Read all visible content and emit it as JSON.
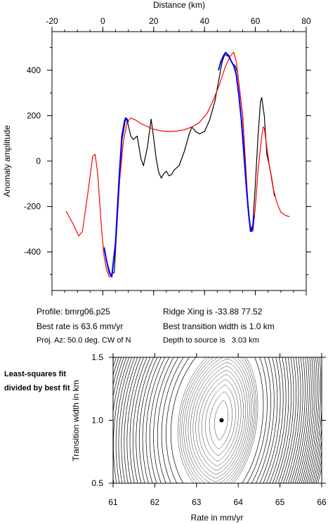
{
  "chart_data": [
    {
      "type": "line",
      "xlabel": "Distance (km)",
      "ylabel": "Anomaly amplitude",
      "xlim": [
        -20,
        80
      ],
      "ylim": [
        -570,
        570
      ],
      "x_ticks": [
        -20,
        0,
        20,
        40,
        60,
        80
      ],
      "y_ticks": [
        -400,
        -200,
        0,
        200,
        400
      ],
      "grid": false,
      "series": [
        {
          "color": "#000000",
          "points": [
            [
              0.5,
              -380
            ],
            [
              1.5,
              -440
            ],
            [
              3,
              -500
            ],
            [
              4.5,
              -490
            ],
            [
              6,
              -200
            ],
            [
              7.5,
              90
            ],
            [
              9,
              190
            ],
            [
              10,
              160
            ],
            [
              11,
              110
            ],
            [
              12,
              95
            ],
            [
              13.5,
              110
            ],
            [
              15,
              10
            ],
            [
              16,
              -20
            ],
            [
              17.5,
              60
            ],
            [
              19,
              185
            ],
            [
              20,
              100
            ],
            [
              21,
              10
            ],
            [
              22,
              -50
            ],
            [
              23,
              -75
            ],
            [
              24,
              -55
            ],
            [
              25,
              -45
            ],
            [
              26,
              -65
            ],
            [
              27,
              -60
            ],
            [
              28,
              -40
            ],
            [
              30,
              -20
            ],
            [
              32,
              40
            ],
            [
              34,
              120
            ],
            [
              35,
              150
            ],
            [
              36.5,
              130
            ],
            [
              38,
              120
            ],
            [
              40,
              130
            ],
            [
              42,
              180
            ],
            [
              44,
              260
            ],
            [
              46,
              380
            ],
            [
              47,
              440
            ],
            [
              48,
              470
            ],
            [
              49.5,
              460
            ],
            [
              51,
              430
            ],
            [
              52,
              420
            ],
            [
              53,
              390
            ],
            [
              55,
              200
            ],
            [
              56,
              0
            ],
            [
              57,
              -200
            ],
            [
              58,
              -310
            ],
            [
              59,
              -280
            ],
            [
              60,
              -100
            ],
            [
              61,
              100
            ],
            [
              62,
              260
            ],
            [
              62.5,
              280
            ],
            [
              63.5,
              200
            ],
            [
              64.5,
              30
            ],
            [
              65.5,
              -20
            ],
            [
              66.5,
              -80
            ],
            [
              67.5,
              -155
            ]
          ]
        },
        {
          "color": "#ff0000",
          "points": [
            [
              -14.5,
              -220
            ],
            [
              -12,
              -270
            ],
            [
              -9.5,
              -330
            ],
            [
              -8,
              -310
            ],
            [
              -6,
              -150
            ],
            [
              -4,
              20
            ],
            [
              -3,
              30
            ],
            [
              -2,
              -60
            ],
            [
              -0.5,
              -300
            ],
            [
              0.5,
              -420
            ],
            [
              1.5,
              -480
            ],
            [
              2.5,
              -510
            ],
            [
              3.5,
              -500
            ],
            [
              5,
              -380
            ],
            [
              6.5,
              -100
            ],
            [
              8,
              80
            ],
            [
              9.5,
              170
            ],
            [
              11,
              190
            ],
            [
              13,
              180
            ],
            [
              15,
              165
            ],
            [
              17,
              155
            ],
            [
              20,
              140
            ],
            [
              23,
              133
            ],
            [
              26,
              130
            ],
            [
              29,
              132
            ],
            [
              32,
              138
            ],
            [
              35,
              150
            ],
            [
              38,
              170
            ],
            [
              41,
              210
            ],
            [
              43.5,
              270
            ],
            [
              46,
              340
            ],
            [
              48,
              410
            ],
            [
              50,
              460
            ],
            [
              51.5,
              480
            ],
            [
              52.5,
              440
            ],
            [
              53.5,
              340
            ],
            [
              55,
              200
            ],
            [
              56,
              20
            ],
            [
              57,
              -170
            ],
            [
              58,
              -300
            ],
            [
              59,
              -310
            ],
            [
              60,
              -200
            ],
            [
              61,
              -50
            ],
            [
              62,
              60
            ],
            [
              63,
              150
            ],
            [
              63.5,
              145
            ],
            [
              64.5,
              60
            ],
            [
              65.5,
              -20
            ],
            [
              67,
              -120
            ],
            [
              68.5,
              -185
            ],
            [
              70,
              -225
            ],
            [
              72,
              -240
            ],
            [
              73.5,
              -245
            ]
          ]
        },
        {
          "color": "#0000ff",
          "points": [
            [
              0.5,
              -380
            ],
            [
              1.5,
              -440
            ],
            [
              2.5,
              -490
            ],
            [
              3.5,
              -510
            ],
            [
              5,
              -360
            ],
            [
              6.5,
              -60
            ],
            [
              7.5,
              110
            ],
            [
              8.5,
              175
            ],
            [
              9,
              190
            ],
            [
              9.5,
              185
            ],
            [
              10,
              170
            ]
          ]
        },
        {
          "color": "#0000ff",
          "points": [
            [
              45.5,
              400
            ],
            [
              46.5,
              440
            ],
            [
              47.5,
              465
            ],
            [
              48.3,
              478
            ],
            [
              49.5,
              465
            ],
            [
              50.5,
              440
            ],
            [
              51.5,
              420
            ],
            [
              52.5,
              380
            ],
            [
              53.5,
              290
            ],
            [
              54.5,
              180
            ],
            [
              55.5,
              30
            ],
            [
              56.5,
              -120
            ],
            [
              57.5,
              -250
            ],
            [
              58.2,
              -310
            ],
            [
              58.8,
              -300
            ],
            [
              59.5,
              -240
            ]
          ]
        }
      ]
    },
    {
      "type": "contour",
      "xlabel": "Rate in mm/yr",
      "ylabel": "Transition width in km",
      "xlim": [
        61,
        66
      ],
      "ylim": [
        0.5,
        1.5
      ],
      "x_ticks": [
        "61",
        "62",
        "63",
        "64",
        "65",
        "66"
      ],
      "y_ticks": [
        "0.5",
        "1.0",
        "1.5"
      ],
      "best_fit": {
        "rate": 63.6,
        "width": 1.0
      }
    }
  ],
  "info": {
    "profile": "Profile: bmrg06.p25",
    "best_rate": "Best rate is 63.6 mm/yr",
    "proj_az": "Proj. Az: 50.0 deg. CW of N",
    "ridge_xing": "Ridge Xing is -33.88 77.52",
    "transition": "Best transition width is 1.0 km",
    "depth": "Depth to source is   3.03 km"
  },
  "side_label": "Least-squares fit divided by best fit"
}
